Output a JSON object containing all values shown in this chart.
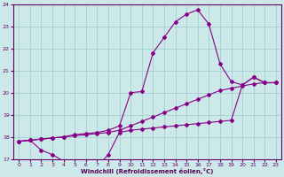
{
  "xlabel": "Windchill (Refroidissement éolien,°C)",
  "bg_color": "#cce8e8",
  "line_color": "#880088",
  "grid_color": "#99cccc",
  "xlim": [
    -0.5,
    23.5
  ],
  "ylim": [
    17,
    24
  ],
  "yticks": [
    17,
    18,
    19,
    20,
    21,
    22,
    23,
    24
  ],
  "xticks": [
    0,
    1,
    2,
    3,
    4,
    5,
    6,
    7,
    8,
    9,
    10,
    11,
    12,
    13,
    14,
    15,
    16,
    17,
    18,
    19,
    20,
    21,
    22,
    23
  ],
  "line_straight_x": [
    0,
    1,
    2,
    3,
    4,
    5,
    6,
    7,
    8,
    9,
    10,
    11,
    12,
    13,
    14,
    15,
    16,
    17,
    18,
    19,
    20,
    21,
    22,
    23
  ],
  "line_straight_y": [
    17.8,
    17.85,
    17.9,
    17.95,
    18.0,
    18.05,
    18.1,
    18.15,
    18.2,
    18.3,
    18.5,
    18.7,
    18.9,
    19.1,
    19.3,
    19.5,
    19.7,
    19.9,
    20.1,
    20.2,
    20.3,
    20.4,
    20.45,
    20.45
  ],
  "line_peak_x": [
    0,
    1,
    2,
    3,
    4,
    5,
    6,
    7,
    8,
    9,
    10,
    11,
    12,
    13,
    14,
    15,
    16,
    17,
    18,
    19,
    20,
    21,
    22,
    23
  ],
  "line_peak_y": [
    17.8,
    17.85,
    17.9,
    17.95,
    18.0,
    18.1,
    18.15,
    18.2,
    18.3,
    18.5,
    20.0,
    20.05,
    21.8,
    22.5,
    23.2,
    23.55,
    23.75,
    23.1,
    21.3,
    20.5,
    20.35,
    20.7,
    20.45,
    20.45
  ],
  "line_dip_x": [
    0,
    1,
    2,
    3,
    4,
    5,
    6,
    7,
    8,
    9,
    10,
    11,
    12,
    13,
    14,
    15,
    16,
    17,
    18,
    19,
    20,
    21,
    22,
    23
  ],
  "line_dip_y": [
    17.8,
    17.85,
    17.4,
    17.2,
    16.9,
    16.7,
    16.55,
    16.65,
    17.2,
    18.2,
    18.3,
    18.35,
    18.4,
    18.45,
    18.5,
    18.55,
    18.6,
    18.65,
    18.7,
    18.75,
    20.35,
    20.7,
    20.45,
    20.45
  ]
}
